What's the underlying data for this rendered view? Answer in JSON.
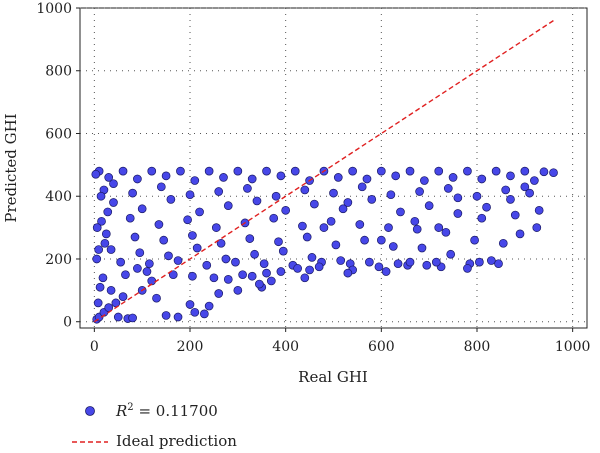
{
  "chart_data": {
    "type": "scatter",
    "title": "",
    "xlabel": "Real GHI",
    "ylabel": "Predicted GHI",
    "xlim": [
      -30,
      1030
    ],
    "ylim": [
      -20,
      1000
    ],
    "xticks": [
      0,
      200,
      400,
      600,
      800,
      1000
    ],
    "yticks": [
      0,
      200,
      400,
      600,
      800,
      1000
    ],
    "grid": true,
    "legend_position": "bottom-left-outside",
    "colors": {
      "points": "#4747e8",
      "point_edge": "#1a1a66",
      "ideal_line": "#e02020"
    },
    "series": [
      {
        "name_prefix": "R",
        "name_sup": "2",
        "name_suffix": " = 0.11700",
        "kind": "points",
        "points": [
          [
            5,
            8
          ],
          [
            10,
            15
          ],
          [
            20,
            30
          ],
          [
            30,
            45
          ],
          [
            45,
            60
          ],
          [
            60,
            80
          ],
          [
            70,
            10
          ],
          [
            80,
            12
          ],
          [
            50,
            15
          ],
          [
            150,
            20
          ],
          [
            175,
            15
          ],
          [
            200,
            55
          ],
          [
            210,
            30
          ],
          [
            230,
            25
          ],
          [
            240,
            50
          ],
          [
            35,
            100
          ],
          [
            100,
            100
          ],
          [
            120,
            130
          ],
          [
            130,
            75
          ],
          [
            260,
            90
          ],
          [
            300,
            100
          ],
          [
            350,
            110
          ],
          [
            10,
            480
          ],
          [
            60,
            480
          ],
          [
            120,
            480
          ],
          [
            180,
            480
          ],
          [
            240,
            480
          ],
          [
            300,
            480
          ],
          [
            360,
            480
          ],
          [
            420,
            480
          ],
          [
            480,
            480
          ],
          [
            540,
            480
          ],
          [
            600,
            480
          ],
          [
            660,
            480
          ],
          [
            720,
            480
          ],
          [
            780,
            480
          ],
          [
            840,
            480
          ],
          [
            900,
            480
          ],
          [
            940,
            478
          ],
          [
            960,
            475
          ],
          [
            30,
            460
          ],
          [
            90,
            455
          ],
          [
            150,
            465
          ],
          [
            210,
            450
          ],
          [
            270,
            460
          ],
          [
            330,
            455
          ],
          [
            390,
            465
          ],
          [
            450,
            450
          ],
          [
            510,
            460
          ],
          [
            570,
            455
          ],
          [
            630,
            465
          ],
          [
            690,
            450
          ],
          [
            750,
            460
          ],
          [
            810,
            455
          ],
          [
            870,
            465
          ],
          [
            920,
            450
          ],
          [
            20,
            420
          ],
          [
            80,
            410
          ],
          [
            140,
            430
          ],
          [
            200,
            405
          ],
          [
            260,
            415
          ],
          [
            320,
            425
          ],
          [
            380,
            400
          ],
          [
            440,
            420
          ],
          [
            500,
            410
          ],
          [
            560,
            430
          ],
          [
            620,
            405
          ],
          [
            680,
            415
          ],
          [
            740,
            425
          ],
          [
            800,
            400
          ],
          [
            860,
            420
          ],
          [
            910,
            410
          ],
          [
            40,
            380
          ],
          [
            100,
            360
          ],
          [
            160,
            390
          ],
          [
            220,
            350
          ],
          [
            280,
            370
          ],
          [
            340,
            385
          ],
          [
            400,
            355
          ],
          [
            460,
            375
          ],
          [
            520,
            360
          ],
          [
            580,
            390
          ],
          [
            640,
            350
          ],
          [
            700,
            370
          ],
          [
            760,
            345
          ],
          [
            820,
            365
          ],
          [
            880,
            340
          ],
          [
            930,
            355
          ],
          [
            15,
            320
          ],
          [
            75,
            330
          ],
          [
            135,
            310
          ],
          [
            195,
            325
          ],
          [
            255,
            300
          ],
          [
            315,
            315
          ],
          [
            375,
            330
          ],
          [
            435,
            305
          ],
          [
            495,
            320
          ],
          [
            555,
            310
          ],
          [
            615,
            300
          ],
          [
            675,
            295
          ],
          [
            735,
            285
          ],
          [
            795,
            260
          ],
          [
            855,
            250
          ],
          [
            925,
            300
          ],
          [
            25,
            280
          ],
          [
            85,
            270
          ],
          [
            145,
            260
          ],
          [
            205,
            275
          ],
          [
            265,
            250
          ],
          [
            325,
            265
          ],
          [
            385,
            255
          ],
          [
            445,
            270
          ],
          [
            505,
            245
          ],
          [
            565,
            260
          ],
          [
            625,
            240
          ],
          [
            685,
            235
          ],
          [
            745,
            215
          ],
          [
            805,
            190
          ],
          [
            845,
            185
          ],
          [
            890,
            280
          ],
          [
            35,
            230
          ],
          [
            95,
            220
          ],
          [
            155,
            210
          ],
          [
            215,
            235
          ],
          [
            275,
            200
          ],
          [
            335,
            215
          ],
          [
            395,
            225
          ],
          [
            455,
            205
          ],
          [
            515,
            195
          ],
          [
            575,
            190
          ],
          [
            635,
            185
          ],
          [
            695,
            180
          ],
          [
            725,
            175
          ],
          [
            785,
            185
          ],
          [
            780,
            170
          ],
          [
            830,
            195
          ],
          [
            5,
            200
          ],
          [
            55,
            190
          ],
          [
            115,
            185
          ],
          [
            175,
            195
          ],
          [
            235,
            180
          ],
          [
            295,
            190
          ],
          [
            355,
            185
          ],
          [
            415,
            180
          ],
          [
            475,
            190
          ],
          [
            535,
            185
          ],
          [
            595,
            175
          ],
          [
            655,
            180
          ],
          [
            715,
            190
          ],
          [
            540,
            165
          ],
          [
            425,
            170
          ],
          [
            450,
            165
          ],
          [
            390,
            160
          ],
          [
            360,
            155
          ],
          [
            310,
            150
          ],
          [
            370,
            130
          ],
          [
            250,
            140
          ],
          [
            205,
            145
          ],
          [
            165,
            150
          ],
          [
            110,
            160
          ],
          [
            65,
            150
          ],
          [
            90,
            170
          ],
          [
            280,
            135
          ],
          [
            330,
            145
          ],
          [
            345,
            120
          ],
          [
            440,
            140
          ],
          [
            470,
            175
          ],
          [
            530,
            155
          ],
          [
            610,
            160
          ],
          [
            660,
            190
          ],
          [
            480,
            300
          ],
          [
            530,
            380
          ],
          [
            600,
            260
          ],
          [
            670,
            320
          ],
          [
            720,
            300
          ],
          [
            760,
            395
          ],
          [
            810,
            330
          ],
          [
            870,
            390
          ],
          [
            900,
            430
          ],
          [
            8,
            60
          ],
          [
            12,
            110
          ],
          [
            18,
            140
          ],
          [
            22,
            250
          ],
          [
            28,
            350
          ],
          [
            40,
            440
          ],
          [
            6,
            300
          ],
          [
            14,
            400
          ],
          [
            3,
            470
          ],
          [
            9,
            230
          ]
        ]
      },
      {
        "name": "Ideal prediction",
        "kind": "line",
        "x": [
          0,
          960
        ],
        "y": [
          0,
          960
        ]
      }
    ]
  }
}
